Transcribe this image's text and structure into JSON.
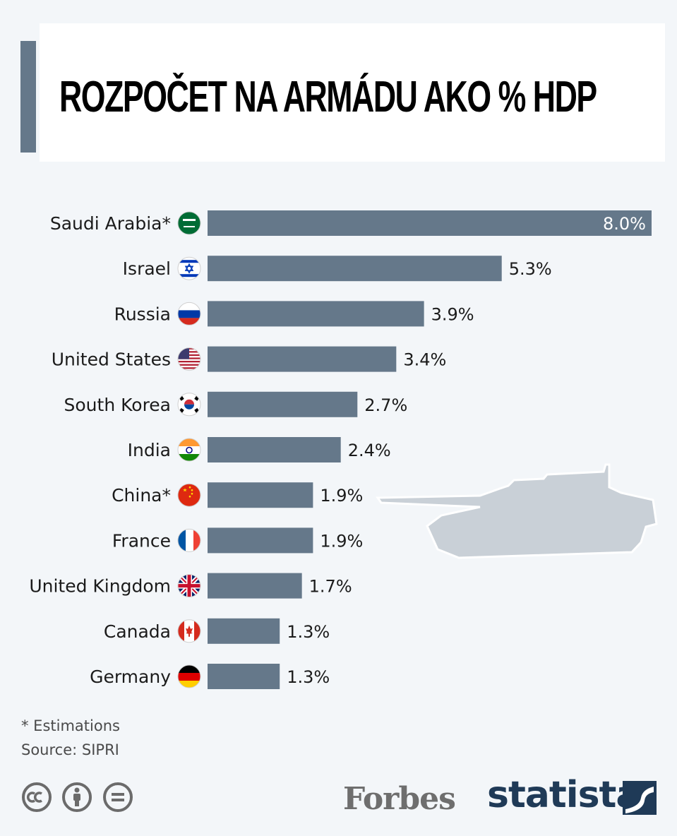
{
  "title": "ROZPOČET NA ARMÁDU AKO % HDP",
  "footnote": "* Estimations",
  "source": "Source: SIPRI",
  "logos": {
    "forbes": "Forbes",
    "statista": "statista"
  },
  "icons": [
    "cc-icon",
    "attribution-icon",
    "no-derivatives-icon",
    "statista-mark-icon",
    "tank-icon"
  ],
  "colors": {
    "bar": "#65788a",
    "accent": "#65788a",
    "background": "#f3f6f9",
    "tank": "#c9d0d7"
  },
  "chart_data": {
    "type": "bar",
    "orientation": "horizontal",
    "unit": "%",
    "categories": [
      "Saudi Arabia*",
      "Israel",
      "Russia",
      "United States",
      "South Korea",
      "India",
      "China*",
      "France",
      "United Kingdom",
      "Canada",
      "Germany"
    ],
    "values": [
      8.0,
      5.3,
      3.9,
      3.4,
      2.7,
      2.4,
      1.9,
      1.9,
      1.7,
      1.3,
      1.3
    ],
    "value_labels": [
      "8.0%",
      "5.3%",
      "3.9%",
      "3.4%",
      "2.7%",
      "2.4%",
      "1.9%",
      "1.9%",
      "1.7%",
      "1.3%",
      "1.3%"
    ],
    "flags": [
      "saudi-arabia-flag-icon",
      "israel-flag-icon",
      "russia-flag-icon",
      "united-states-flag-icon",
      "south-korea-flag-icon",
      "india-flag-icon",
      "china-flag-icon",
      "france-flag-icon",
      "united-kingdom-flag-icon",
      "canada-flag-icon",
      "germany-flag-icon"
    ],
    "xlim": [
      0,
      8.0
    ],
    "grid": false,
    "legend": "none"
  }
}
